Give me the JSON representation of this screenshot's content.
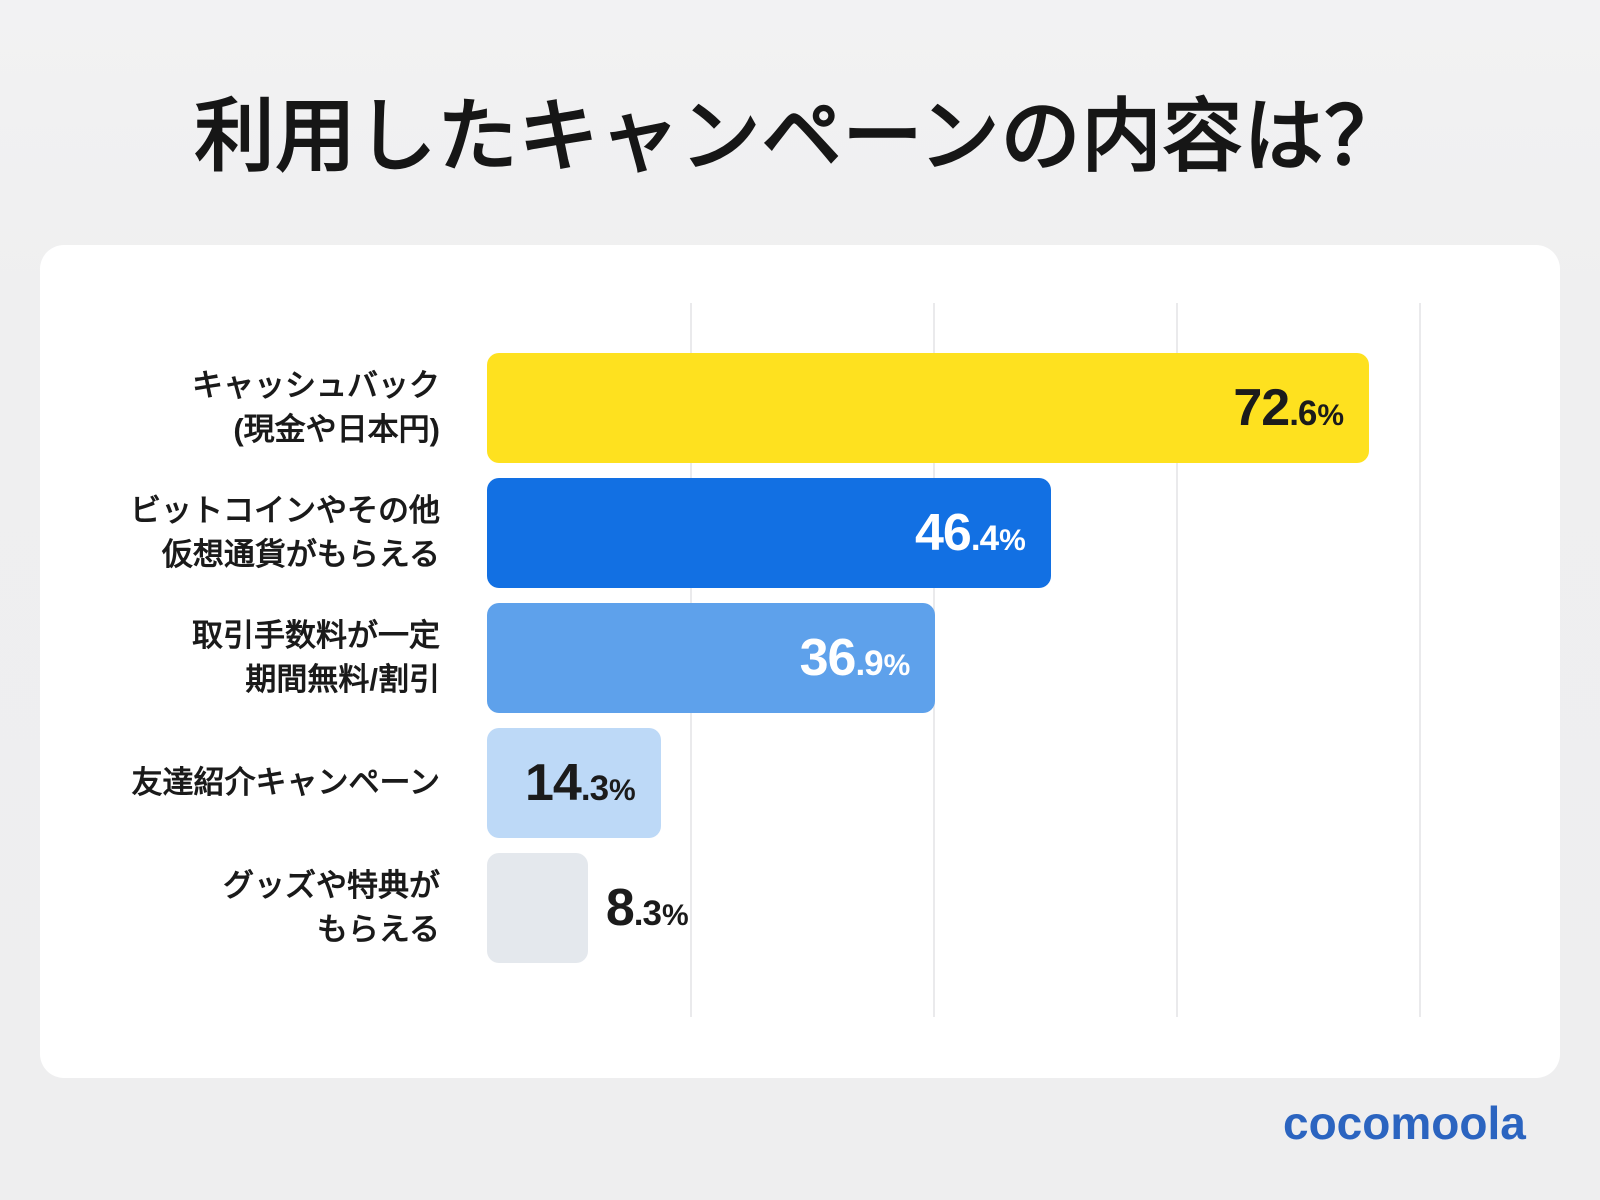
{
  "page": {
    "title": "利用したキャンペーンの内容は？",
    "background_color": "#efeff0",
    "card_color": "#ffffff"
  },
  "brand": {
    "logo_text": "cocomoola",
    "logo_color": "#2b64c0"
  },
  "chart_data": {
    "type": "bar",
    "orientation": "horizontal",
    "title": "利用したキャンペーンの内容は？",
    "unit": "%",
    "categories": [
      "キャッシュバック(現金や日本円)",
      "ビットコインやその他仮想通貨がもらえる",
      "取引手数料が一定期間無料/割引",
      "友達紹介キャンペーン",
      "グッズや特典がもらえる"
    ],
    "category_lines": [
      [
        "キャッシュバック",
        "(現金や日本円)"
      ],
      [
        "ビットコインやその他",
        "仮想通貨がもらえる"
      ],
      [
        "取引手数料が一定",
        "期間無料/割引"
      ],
      [
        "友達紹介キャンペーン"
      ],
      [
        "グッズや特典が",
        "もらえる"
      ]
    ],
    "values": [
      72.6,
      46.4,
      36.9,
      14.3,
      8.3
    ],
    "value_labels": [
      "72.6%",
      "46.4%",
      "36.9%",
      "14.3%",
      "8.3%"
    ],
    "xlim": [
      0,
      100
    ],
    "gridline_values": [
      20,
      40,
      60,
      80
    ],
    "grid": true,
    "legend": false,
    "bar_colors": [
      "#fee11f",
      "#1270e3",
      "#5ea1eb",
      "#bdd9f7",
      "#e4e8ed"
    ],
    "value_text_colors": [
      "#1b1b1b",
      "#ffffff",
      "#ffffff",
      "#1b1b1b",
      "#1b1b1b"
    ],
    "value_inside": [
      true,
      true,
      true,
      true,
      false
    ],
    "grid_color": "#eaeaec"
  }
}
